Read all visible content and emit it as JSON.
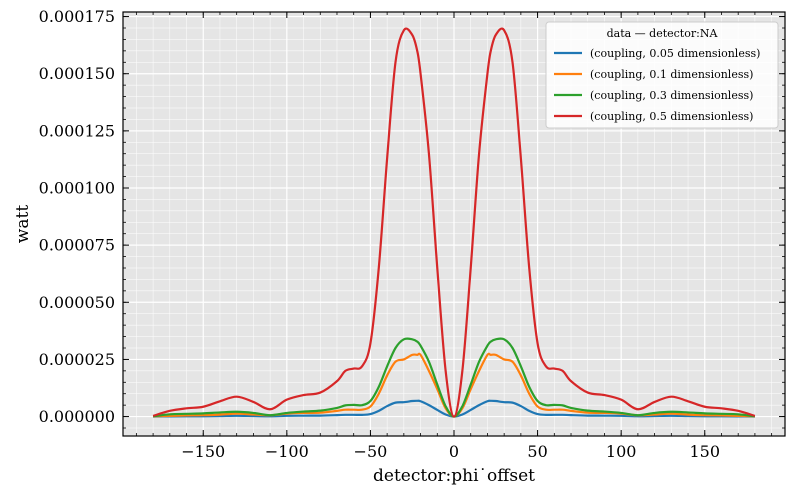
{
  "chart_data": {
    "type": "line",
    "xlabel": "detector:phi˙offset",
    "ylabel": "watt",
    "xlim": [
      -198,
      198
    ],
    "ylim": [
      -8.5e-06,
      0.000177
    ],
    "xticks": [
      -150,
      -100,
      -50,
      0,
      50,
      100,
      150
    ],
    "xtick_labels": [
      "−150",
      "−100",
      "−50",
      "0",
      "50",
      "100",
      "150"
    ],
    "yticks": [
      0.0,
      2.5e-05,
      5e-05,
      7.5e-05,
      0.0001,
      0.000125,
      0.00015,
      0.000175
    ],
    "ytick_labels": [
      "0.000000",
      "0.000025",
      "0.000050",
      "0.000075",
      "0.000100",
      "0.000125",
      "0.000150",
      "0.000175"
    ],
    "grid": true,
    "legend": {
      "title": "data — detector:NA",
      "placement": "top-right"
    },
    "x": [
      -180,
      -170,
      -160,
      -150,
      -140,
      -130,
      -120,
      -110,
      -100,
      -90,
      -80,
      -70,
      -65,
      -60,
      -55,
      -50,
      -45,
      -40,
      -35,
      -30,
      -25,
      -22,
      -20,
      -15,
      -10,
      -5,
      0,
      5,
      10,
      15,
      20,
      22,
      25,
      30,
      35,
      40,
      45,
      50,
      55,
      60,
      65,
      70,
      80,
      90,
      100,
      110,
      120,
      130,
      140,
      150,
      160,
      170,
      180
    ],
    "series": [
      {
        "name": "(coupling, 0.05 dimensionless)",
        "color": "#1f77b4",
        "values": [
          2.8e-08,
          7.7e-08,
          1.3e-07,
          1.5e-07,
          2.2e-07,
          3.3e-07,
          2.3e-07,
          1.4e-07,
          3.3e-07,
          3.9e-07,
          4.3e-07,
          6.3e-07,
          7.6e-07,
          7.6e-07,
          7.5e-07,
          1.1e-06,
          2.5e-06,
          4.6e-06,
          6.1e-06,
          6.3e-06,
          6.8e-06,
          6.9e-06,
          6.7e-06,
          5e-06,
          2.9e-06,
          9e-07,
          0,
          9e-07,
          2.9e-06,
          5e-06,
          6.7e-06,
          6.9e-06,
          6.8e-06,
          6.3e-06,
          6.1e-06,
          4.6e-06,
          2.5e-06,
          1.1e-06,
          7.5e-07,
          7.6e-07,
          7.6e-07,
          6.3e-07,
          4.3e-07,
          3.9e-07,
          3.3e-07,
          1.4e-07,
          2.3e-07,
          3.3e-07,
          2.2e-07,
          1.5e-07,
          1.3e-07,
          7.7e-08,
          2.8e-08
        ]
      },
      {
        "name": "(coupling, 0.1 dimensionless)",
        "color": "#ff7f0e",
        "values": [
          1.1e-07,
          3.1e-07,
          5.2e-07,
          6e-07,
          8.6e-07,
          1.3e-06,
          9.2e-07,
          5.6e-07,
          1.3e-06,
          1.6e-06,
          1.7e-06,
          2.5e-06,
          3e-06,
          3e-06,
          3e-06,
          4.4e-06,
          1e-05,
          1.8e-05,
          2.4e-05,
          2.5e-05,
          2.7e-05,
          2.7e-05,
          2.7e-05,
          2e-05,
          1.2e-05,
          3.6e-06,
          0,
          3.6e-06,
          1.2e-05,
          2e-05,
          2.7e-05,
          2.7e-05,
          2.7e-05,
          2.5e-05,
          2.4e-05,
          1.8e-05,
          1e-05,
          4.4e-06,
          3e-06,
          3e-06,
          3e-06,
          2.5e-06,
          1.7e-06,
          1.6e-06,
          1.3e-06,
          5.6e-07,
          9.2e-07,
          1.3e-06,
          8.6e-07,
          6e-07,
          5.2e-07,
          3.1e-07,
          1.1e-07
        ]
      },
      {
        "name": "(coupling, 0.3 dimensionless)",
        "color": "#2ca02c",
        "values": [
          1e-07,
          1e-06,
          1.2e-06,
          1.4e-06,
          1.8e-06,
          2.1e-06,
          1.6e-06,
          6e-07,
          1.6e-06,
          2.2e-06,
          2.6e-06,
          3.8e-06,
          4.9e-06,
          5.1e-06,
          5e-06,
          6.8e-06,
          1.3e-05,
          2.2e-05,
          3e-05,
          3.38e-05,
          3.38e-05,
          3.28e-05,
          3.1e-05,
          2.4e-05,
          1.4e-05,
          4.5e-06,
          0,
          4.5e-06,
          1.4e-05,
          2.4e-05,
          3.1e-05,
          3.28e-05,
          3.38e-05,
          3.38e-05,
          3e-05,
          2.2e-05,
          1.3e-05,
          6.8e-06,
          5e-06,
          5.1e-06,
          4.9e-06,
          3.8e-06,
          2.6e-06,
          2.2e-06,
          1.6e-06,
          6e-07,
          1.6e-06,
          2.1e-06,
          1.8e-06,
          1.4e-06,
          1.2e-06,
          1e-06,
          1e-07
        ]
      },
      {
        "name": "(coupling, 0.5 dimensionless)",
        "color": "#d62728",
        "values": [
          3e-07,
          2.5e-06,
          3.6e-06,
          4.3e-06,
          6.7e-06,
          8.7e-06,
          6.4e-06,
          3.2e-06,
          7.4e-06,
          9.4e-06,
          1.05e-05,
          1.55e-05,
          2e-05,
          2.1e-05,
          2.2e-05,
          3.2e-05,
          6.5e-05,
          0.000113,
          0.000155,
          0.000169,
          0.000167,
          0.00016,
          0.00015,
          0.000115,
          6.5e-05,
          2e-05,
          0,
          2e-05,
          6.5e-05,
          0.000115,
          0.00015,
          0.00016,
          0.000167,
          0.000169,
          0.000155,
          0.000113,
          6.5e-05,
          3.2e-05,
          2.2e-05,
          2.1e-05,
          2e-05,
          1.55e-05,
          1.05e-05,
          9.4e-06,
          7.4e-06,
          3.2e-06,
          6.4e-06,
          8.7e-06,
          6.7e-06,
          4.3e-06,
          3.6e-06,
          2.5e-06,
          3e-07
        ]
      }
    ]
  }
}
